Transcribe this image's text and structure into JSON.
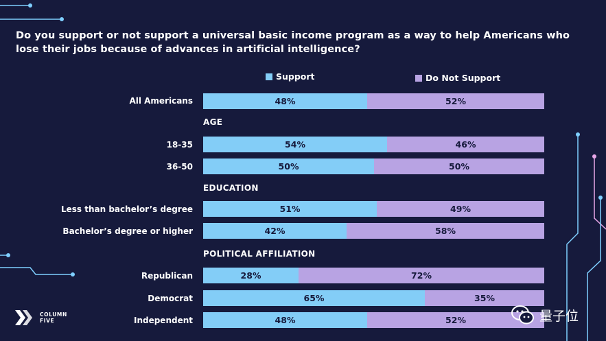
{
  "title": "Do you support or not support a universal basic income program as a way to help Americans who lose their jobs because of advances in artificial intelligence?",
  "colors": {
    "background": "#161a3c",
    "support": "#83cdf7",
    "not_support": "#b8a3e3",
    "circuit": "#7fcfff",
    "circuit_pink": "#e7a6e7"
  },
  "branding": {
    "logo_line1": "COLUMN",
    "logo_line2": "FIVE",
    "logo_icon": "column-five-logo-icon",
    "watermark": "量子位",
    "watermark_icon": "wechat-icon"
  },
  "chart_data": {
    "type": "bar",
    "orientation": "horizontal",
    "stacked": true,
    "percent_scale": [
      0,
      100
    ],
    "legend": [
      "Support",
      "Do Not Support"
    ],
    "sections": [
      "AGE",
      "EDUCATION",
      "POLITICAL AFFILIATION"
    ],
    "rows": [
      {
        "label": "All Americans",
        "section": "",
        "support": 48,
        "not_support": 52
      },
      {
        "label": "18-35",
        "section": "AGE",
        "support": 54,
        "not_support": 46
      },
      {
        "label": "36-50",
        "section": "AGE",
        "support": 50,
        "not_support": 50
      },
      {
        "label": "Less than bachelor’s degree",
        "section": "EDUCATION",
        "support": 51,
        "not_support": 49
      },
      {
        "label": "Bachelor’s degree or higher",
        "section": "EDUCATION",
        "support": 42,
        "not_support": 58
      },
      {
        "label": "Republican",
        "section": "POLITICAL AFFILIATION",
        "support": 28,
        "not_support": 72
      },
      {
        "label": "Democrat",
        "section": "POLITICAL AFFILIATION",
        "support": 65,
        "not_support": 35
      },
      {
        "label": "Independent",
        "section": "POLITICAL AFFILIATION",
        "support": 48,
        "not_support": 52
      }
    ]
  }
}
